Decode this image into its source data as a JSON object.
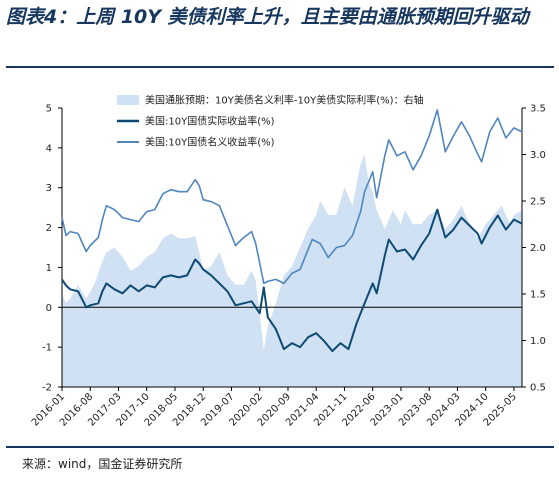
{
  "page": {
    "title": "图表4：上周 10Y 美债利率上升，且主要由通胀预期回升驱动",
    "source": "来源：wind，国金证券研究所"
  },
  "colors": {
    "breakeven_fill": "#cfe1f2",
    "real_yield": "#0e4a73",
    "nominal_yield": "#4f86c0",
    "frame": "#17375e"
  },
  "chart_data": {
    "type": "line",
    "title": "",
    "x_tick_labels": [
      "2016-01",
      "2016-08",
      "2017-03",
      "2017-10",
      "2018-05",
      "2018-12",
      "2019-07",
      "2020-02",
      "2020-09",
      "2021-04",
      "2021-11",
      "2022-06",
      "2023-01",
      "2023-08",
      "2024-03",
      "2024-10",
      "2025-05"
    ],
    "x_range": [
      "2016-01",
      "2025-07"
    ],
    "left_axis": {
      "ylim": [
        -2,
        5
      ],
      "ticks": [
        "-2",
        "-1",
        "0",
        "1",
        "2",
        "3",
        "4",
        "5"
      ]
    },
    "right_axis": {
      "ylim": [
        0.5,
        3.5
      ],
      "ticks": [
        "0.5",
        "1.0",
        "1.5",
        "2.0",
        "2.5",
        "3.0",
        "3.5"
      ]
    },
    "legend": {
      "placement": "top-center"
    },
    "series": [
      {
        "name": "美国通胀预期：10Y美债名义利率-10Y美债实际利率(%)：右轴",
        "kind": "area",
        "axis": "right",
        "points": [
          [
            "2016-01",
            1.5
          ],
          [
            "2016-02",
            1.4
          ],
          [
            "2016-03",
            1.45
          ],
          [
            "2016-05",
            1.6
          ],
          [
            "2016-07",
            1.45
          ],
          [
            "2016-09",
            1.6
          ],
          [
            "2016-11",
            1.85
          ],
          [
            "2016-12",
            1.95
          ],
          [
            "2017-02",
            2.0
          ],
          [
            "2017-04",
            1.9
          ],
          [
            "2017-06",
            1.75
          ],
          [
            "2017-08",
            1.8
          ],
          [
            "2017-10",
            1.9
          ],
          [
            "2017-12",
            1.95
          ],
          [
            "2018-02",
            2.1
          ],
          [
            "2018-04",
            2.15
          ],
          [
            "2018-06",
            2.1
          ],
          [
            "2018-08",
            2.1
          ],
          [
            "2018-10",
            2.12
          ],
          [
            "2018-11",
            1.95
          ],
          [
            "2018-12",
            1.75
          ],
          [
            "2019-02",
            1.8
          ],
          [
            "2019-04",
            1.95
          ],
          [
            "2019-06",
            1.7
          ],
          [
            "2019-08",
            1.6
          ],
          [
            "2019-10",
            1.6
          ],
          [
            "2019-12",
            1.75
          ],
          [
            "2020-01",
            1.65
          ],
          [
            "2020-03",
            0.9
          ],
          [
            "2020-04",
            1.15
          ],
          [
            "2020-06",
            1.4
          ],
          [
            "2020-08",
            1.7
          ],
          [
            "2020-10",
            1.8
          ],
          [
            "2020-12",
            2.0
          ],
          [
            "2021-02",
            2.2
          ],
          [
            "2021-04",
            2.35
          ],
          [
            "2021-05",
            2.5
          ],
          [
            "2021-07",
            2.35
          ],
          [
            "2021-09",
            2.35
          ],
          [
            "2021-11",
            2.65
          ],
          [
            "2022-01",
            2.45
          ],
          [
            "2022-03",
            2.9
          ],
          [
            "2022-04",
            3.0
          ],
          [
            "2022-05",
            2.7
          ],
          [
            "2022-06",
            2.6
          ],
          [
            "2022-07",
            2.4
          ],
          [
            "2022-09",
            2.2
          ],
          [
            "2022-11",
            2.4
          ],
          [
            "2023-01",
            2.25
          ],
          [
            "2023-02",
            2.4
          ],
          [
            "2023-04",
            2.25
          ],
          [
            "2023-06",
            2.25
          ],
          [
            "2023-08",
            2.35
          ],
          [
            "2023-10",
            2.4
          ],
          [
            "2023-12",
            2.2
          ],
          [
            "2024-02",
            2.3
          ],
          [
            "2024-04",
            2.45
          ],
          [
            "2024-06",
            2.25
          ],
          [
            "2024-08",
            2.1
          ],
          [
            "2024-10",
            2.25
          ],
          [
            "2024-12",
            2.35
          ],
          [
            "2025-02",
            2.45
          ],
          [
            "2025-04",
            2.25
          ],
          [
            "2025-05",
            2.35
          ],
          [
            "2025-07",
            2.4
          ]
        ]
      },
      {
        "name": "美国:10Y国债实际收益率(%)",
        "kind": "line",
        "axis": "left",
        "points": [
          [
            "2016-01",
            0.7
          ],
          [
            "2016-02",
            0.55
          ],
          [
            "2016-03",
            0.45
          ],
          [
            "2016-05",
            0.4
          ],
          [
            "2016-07",
            0.0
          ],
          [
            "2016-08",
            0.05
          ],
          [
            "2016-10",
            0.1
          ],
          [
            "2016-11",
            0.4
          ],
          [
            "2016-12",
            0.6
          ],
          [
            "2017-02",
            0.45
          ],
          [
            "2017-04",
            0.35
          ],
          [
            "2017-06",
            0.55
          ],
          [
            "2017-08",
            0.4
          ],
          [
            "2017-10",
            0.55
          ],
          [
            "2017-12",
            0.5
          ],
          [
            "2018-02",
            0.75
          ],
          [
            "2018-04",
            0.8
          ],
          [
            "2018-06",
            0.75
          ],
          [
            "2018-08",
            0.8
          ],
          [
            "2018-10",
            1.2
          ],
          [
            "2018-11",
            1.1
          ],
          [
            "2018-12",
            0.95
          ],
          [
            "2019-02",
            0.8
          ],
          [
            "2019-04",
            0.6
          ],
          [
            "2019-06",
            0.4
          ],
          [
            "2019-08",
            0.05
          ],
          [
            "2019-10",
            0.1
          ],
          [
            "2019-12",
            0.15
          ],
          [
            "2020-01",
            0.0
          ],
          [
            "2020-02",
            -0.15
          ],
          [
            "2020-03",
            0.5
          ],
          [
            "2020-04",
            -0.25
          ],
          [
            "2020-06",
            -0.55
          ],
          [
            "2020-08",
            -1.05
          ],
          [
            "2020-10",
            -0.9
          ],
          [
            "2020-12",
            -1.0
          ],
          [
            "2021-02",
            -0.75
          ],
          [
            "2021-04",
            -0.65
          ],
          [
            "2021-06",
            -0.85
          ],
          [
            "2021-08",
            -1.1
          ],
          [
            "2021-10",
            -0.9
          ],
          [
            "2021-12",
            -1.05
          ],
          [
            "2022-02",
            -0.4
          ],
          [
            "2022-04",
            0.1
          ],
          [
            "2022-06",
            0.6
          ],
          [
            "2022-07",
            0.35
          ],
          [
            "2022-09",
            1.3
          ],
          [
            "2022-10",
            1.7
          ],
          [
            "2022-12",
            1.4
          ],
          [
            "2023-02",
            1.45
          ],
          [
            "2023-04",
            1.2
          ],
          [
            "2023-06",
            1.55
          ],
          [
            "2023-08",
            1.85
          ],
          [
            "2023-10",
            2.45
          ],
          [
            "2023-12",
            1.75
          ],
          [
            "2024-02",
            1.95
          ],
          [
            "2024-04",
            2.25
          ],
          [
            "2024-06",
            2.05
          ],
          [
            "2024-08",
            1.85
          ],
          [
            "2024-09",
            1.6
          ],
          [
            "2024-11",
            2.0
          ],
          [
            "2025-01",
            2.3
          ],
          [
            "2025-03",
            1.95
          ],
          [
            "2025-05",
            2.2
          ],
          [
            "2025-07",
            2.1
          ]
        ]
      },
      {
        "name": "美国:10Y国债名义收益率(%)",
        "kind": "line",
        "axis": "left",
        "points": [
          [
            "2016-01",
            2.25
          ],
          [
            "2016-02",
            1.8
          ],
          [
            "2016-03",
            1.9
          ],
          [
            "2016-05",
            1.85
          ],
          [
            "2016-07",
            1.4
          ],
          [
            "2016-08",
            1.55
          ],
          [
            "2016-10",
            1.75
          ],
          [
            "2016-11",
            2.2
          ],
          [
            "2016-12",
            2.55
          ],
          [
            "2017-02",
            2.45
          ],
          [
            "2017-04",
            2.25
          ],
          [
            "2017-06",
            2.2
          ],
          [
            "2017-08",
            2.15
          ],
          [
            "2017-10",
            2.4
          ],
          [
            "2017-12",
            2.45
          ],
          [
            "2018-02",
            2.85
          ],
          [
            "2018-04",
            2.95
          ],
          [
            "2018-06",
            2.9
          ],
          [
            "2018-08",
            2.9
          ],
          [
            "2018-10",
            3.2
          ],
          [
            "2018-11",
            3.05
          ],
          [
            "2018-12",
            2.7
          ],
          [
            "2019-02",
            2.65
          ],
          [
            "2019-04",
            2.55
          ],
          [
            "2019-06",
            2.05
          ],
          [
            "2019-08",
            1.55
          ],
          [
            "2019-10",
            1.75
          ],
          [
            "2019-12",
            1.9
          ],
          [
            "2020-01",
            1.6
          ],
          [
            "2020-03",
            0.6
          ],
          [
            "2020-04",
            0.65
          ],
          [
            "2020-06",
            0.7
          ],
          [
            "2020-08",
            0.6
          ],
          [
            "2020-10",
            0.85
          ],
          [
            "2020-12",
            0.95
          ],
          [
            "2021-02",
            1.45
          ],
          [
            "2021-03",
            1.7
          ],
          [
            "2021-05",
            1.6
          ],
          [
            "2021-07",
            1.25
          ],
          [
            "2021-09",
            1.5
          ],
          [
            "2021-11",
            1.55
          ],
          [
            "2022-01",
            1.8
          ],
          [
            "2022-03",
            2.4
          ],
          [
            "2022-04",
            2.9
          ],
          [
            "2022-06",
            3.4
          ],
          [
            "2022-07",
            2.75
          ],
          [
            "2022-09",
            3.8
          ],
          [
            "2022-10",
            4.2
          ],
          [
            "2022-12",
            3.8
          ],
          [
            "2023-02",
            3.9
          ],
          [
            "2023-04",
            3.45
          ],
          [
            "2023-06",
            3.8
          ],
          [
            "2023-08",
            4.3
          ],
          [
            "2023-10",
            4.95
          ],
          [
            "2023-12",
            3.9
          ],
          [
            "2024-02",
            4.3
          ],
          [
            "2024-04",
            4.65
          ],
          [
            "2024-06",
            4.3
          ],
          [
            "2024-08",
            3.85
          ],
          [
            "2024-09",
            3.65
          ],
          [
            "2024-11",
            4.4
          ],
          [
            "2025-01",
            4.75
          ],
          [
            "2025-03",
            4.25
          ],
          [
            "2025-05",
            4.5
          ],
          [
            "2025-07",
            4.4
          ]
        ]
      }
    ]
  }
}
